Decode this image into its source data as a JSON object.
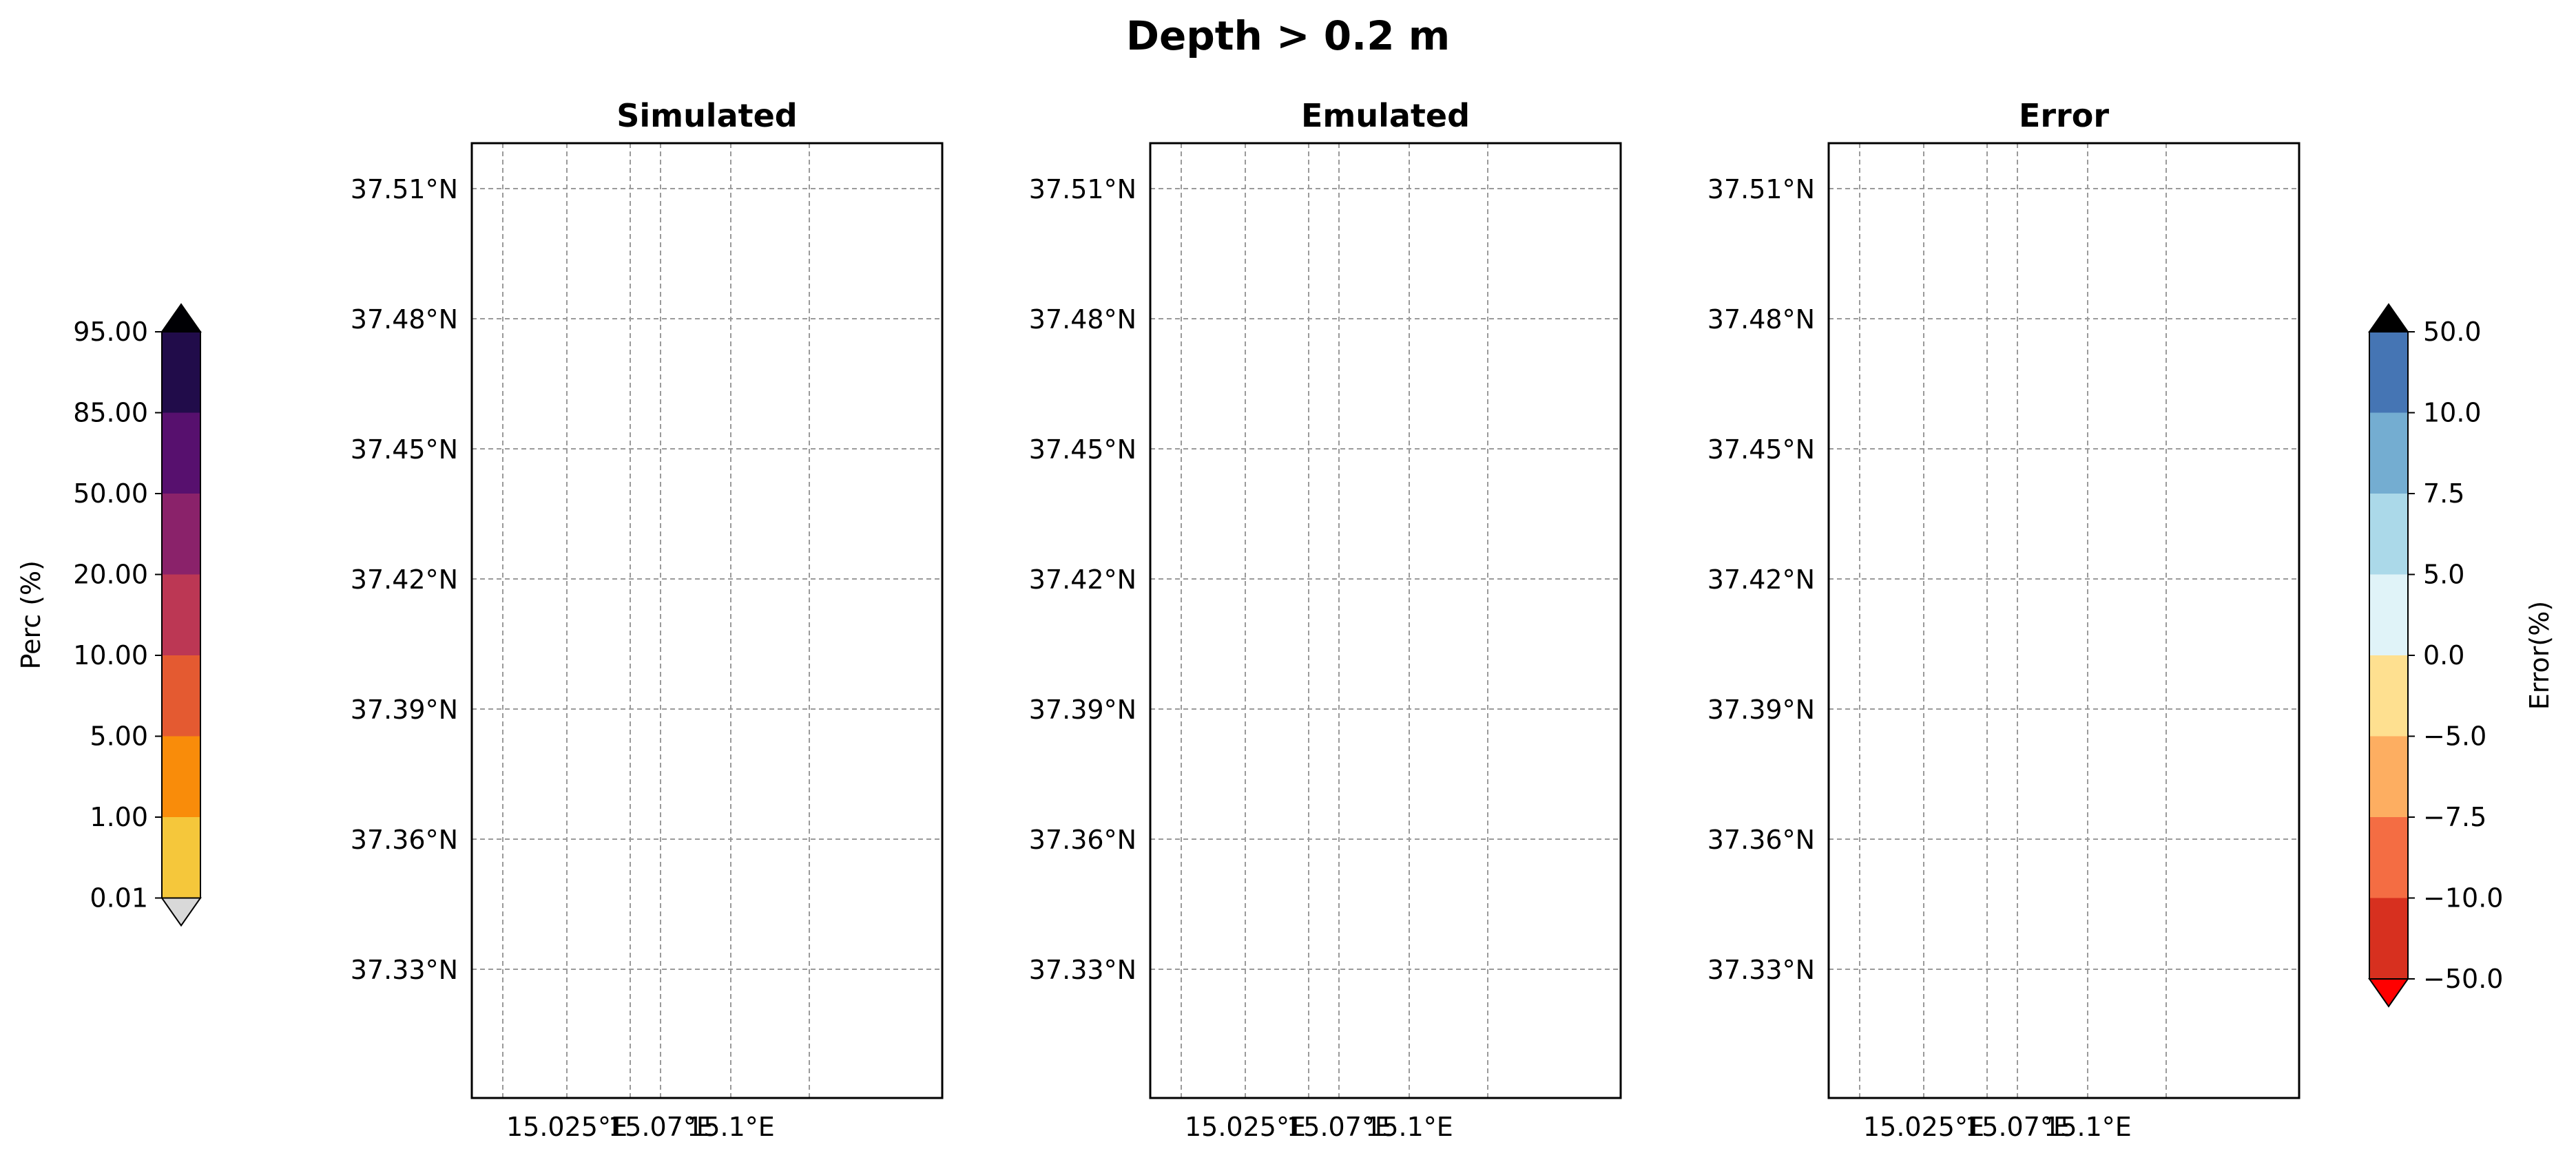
{
  "title": "Depth > 0.2 m",
  "panels": [
    {
      "title": "Simulated",
      "mode": "perc",
      "spread": 0.25
    },
    {
      "title": "Emulated",
      "mode": "perc",
      "spread": 1.0
    },
    {
      "title": "Error",
      "mode": "error"
    }
  ],
  "lat_ticks": [
    "37.51°N",
    "37.48°N",
    "37.45°N",
    "37.42°N",
    "37.39°N",
    "37.36°N",
    "37.33°N"
  ],
  "lon_ticks": [
    "15.025°E",
    "15.07°E",
    "15.1°E"
  ],
  "colors": {
    "land": "#d3d3d3",
    "grid": "#9a9a9a",
    "perc": [
      "#f5c73b",
      "#f98c0a",
      "#e45a31",
      "#bc3754",
      "#8a226a",
      "#57106e",
      "#210c4a"
    ],
    "perc_over": "#000004",
    "perc_under": "#d9d9d9",
    "error": [
      "#d7301f",
      "#f46d43",
      "#fdae61",
      "#fee090",
      "#e0f3f8",
      "#abd9e9",
      "#74add1",
      "#4575b4"
    ],
    "error_over": "#000000",
    "error_under": "#ff0000"
  },
  "colorbar_perc": {
    "label": "Perc (%)",
    "ticks": [
      "0.01",
      "1.00",
      "5.00",
      "10.00",
      "20.00",
      "50.00",
      "85.00",
      "95.00"
    ]
  },
  "colorbar_error": {
    "label": "Error(%)",
    "ticks": [
      "−50.0",
      "−10.0",
      "−7.5",
      "−5.0",
      "0.0",
      "5.0",
      "7.5",
      "10.0",
      "50.0"
    ]
  }
}
